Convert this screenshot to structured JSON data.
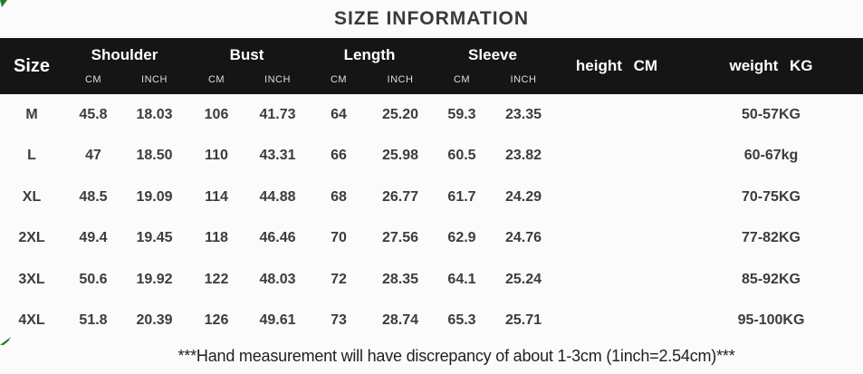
{
  "title": "SIZE INFORMATION",
  "header": {
    "size_label": "Size",
    "groups": [
      {
        "label": "Shoulder",
        "units": [
          "CM",
          "INCH"
        ]
      },
      {
        "label": "Bust",
        "units": [
          "CM",
          "INCH"
        ]
      },
      {
        "label": "Length",
        "units": [
          "CM",
          "INCH"
        ]
      },
      {
        "label": "Sleeve",
        "units": [
          "CM",
          "INCH"
        ]
      }
    ],
    "height_label": "height CM",
    "weight_label": "weight KG"
  },
  "rows": [
    {
      "size": "M",
      "shoulder_cm": "45.8",
      "shoulder_inch": "18.03",
      "bust_cm": "106",
      "bust_inch": "41.73",
      "length_cm": "64",
      "length_inch": "25.20",
      "sleeve_cm": "59.3",
      "sleeve_inch": "23.35",
      "height": "",
      "weight": "50-57KG"
    },
    {
      "size": "L",
      "shoulder_cm": "47",
      "shoulder_inch": "18.50",
      "bust_cm": "110",
      "bust_inch": "43.31",
      "length_cm": "66",
      "length_inch": "25.98",
      "sleeve_cm": "60.5",
      "sleeve_inch": "23.82",
      "height": "",
      "weight": "60-67kg"
    },
    {
      "size": "XL",
      "shoulder_cm": "48.5",
      "shoulder_inch": "19.09",
      "bust_cm": "114",
      "bust_inch": "44.88",
      "length_cm": "68",
      "length_inch": "26.77",
      "sleeve_cm": "61.7",
      "sleeve_inch": "24.29",
      "height": "",
      "weight": "70-75KG"
    },
    {
      "size": "2XL",
      "shoulder_cm": "49.4",
      "shoulder_inch": "19.45",
      "bust_cm": "118",
      "bust_inch": "46.46",
      "length_cm": "70",
      "length_inch": "27.56",
      "sleeve_cm": "62.9",
      "sleeve_inch": "24.76",
      "height": "",
      "weight": "77-82KG"
    },
    {
      "size": "3XL",
      "shoulder_cm": "50.6",
      "shoulder_inch": "19.92",
      "bust_cm": "122",
      "bust_inch": "48.03",
      "length_cm": "72",
      "length_inch": "28.35",
      "sleeve_cm": "64.1",
      "sleeve_inch": "25.24",
      "height": "",
      "weight": "85-92KG"
    },
    {
      "size": "4XL",
      "shoulder_cm": "51.8",
      "shoulder_inch": "20.39",
      "bust_cm": "126",
      "bust_inch": "49.61",
      "length_cm": "73",
      "length_inch": "28.74",
      "sleeve_cm": "65.3",
      "sleeve_inch": "25.71",
      "height": "",
      "weight": "95-100KG"
    }
  ],
  "footer_note": "***Hand measurement will have discrepancy of about 1-3cm (1inch=2.54cm)***",
  "colors": {
    "header_bg": "#151515",
    "header_text": "#ffffff",
    "body_text": "#3c3c3c",
    "accent_green": "#2b7a2b"
  }
}
